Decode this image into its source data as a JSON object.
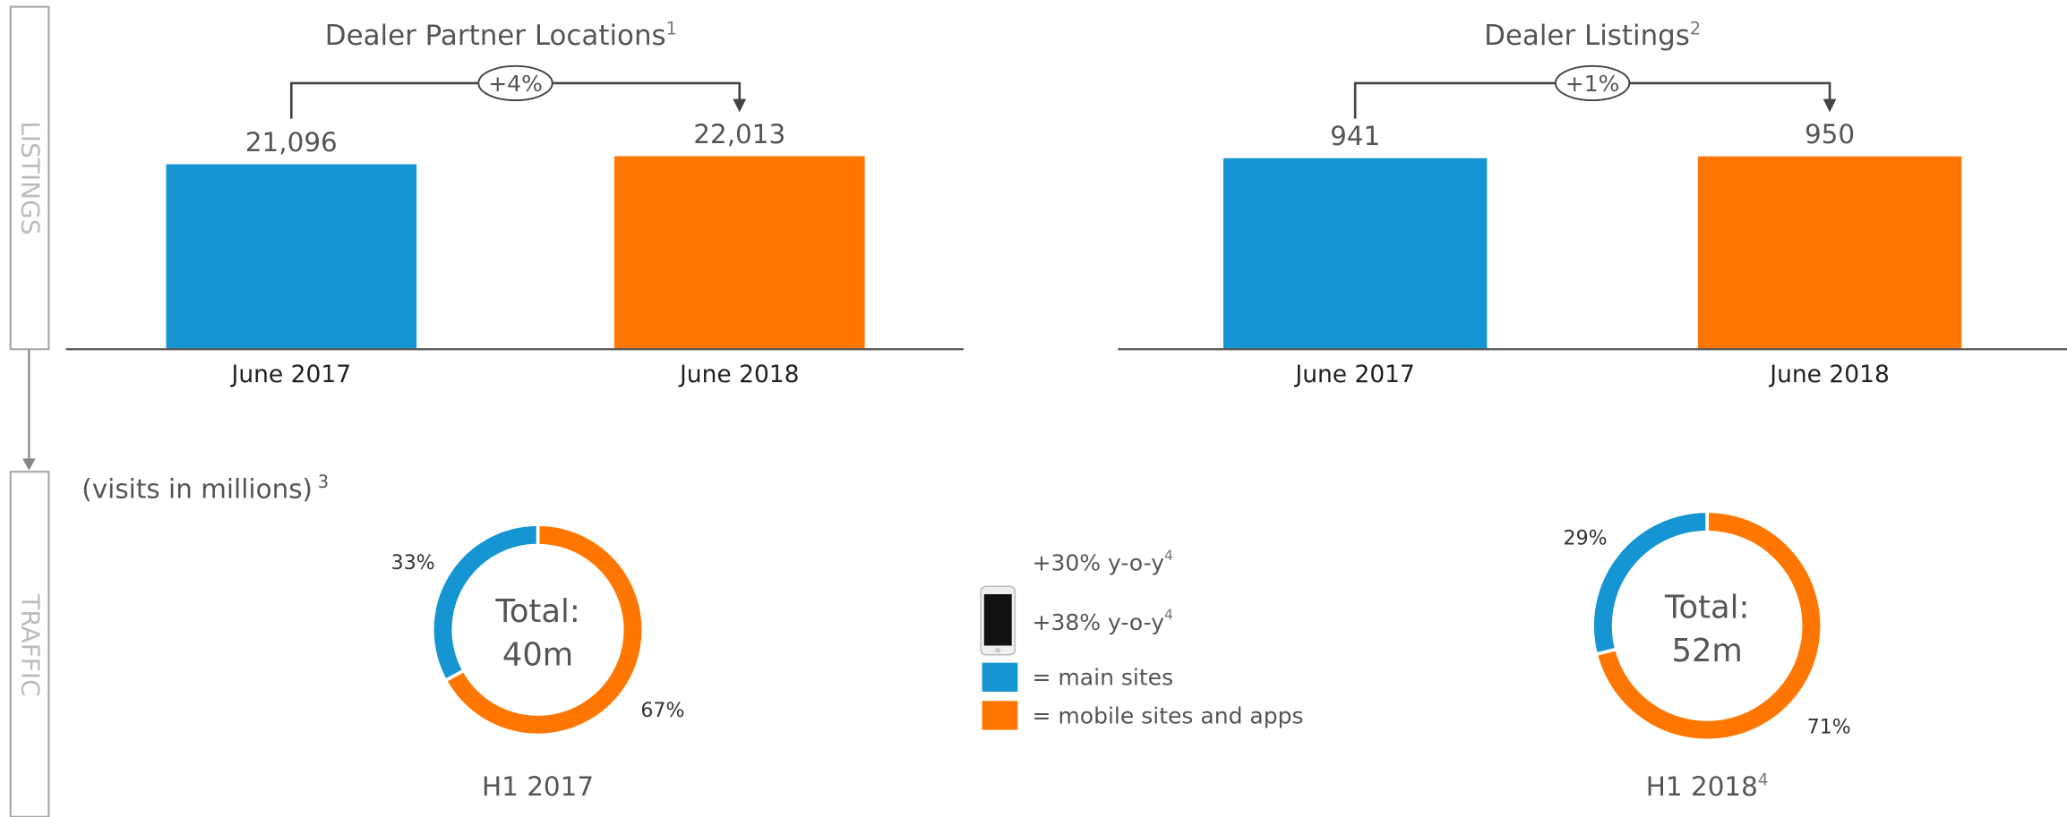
{
  "side_labels": [
    "LISTINGS",
    "TRAFFIC"
  ],
  "chart_data": [
    {
      "type": "bar",
      "title": "Dealer Partner Locations",
      "title_footnote": "1",
      "categories": [
        "June 2017",
        "June 2018"
      ],
      "values": [
        21096,
        22013
      ],
      "value_labels": [
        "21,096",
        "22,013"
      ],
      "colors": [
        "#1596d3",
        "#ff7700"
      ],
      "ylim": [
        0,
        33800
      ],
      "change_label": "+4%"
    },
    {
      "type": "bar",
      "title": "Dealer Listings",
      "title_footnote": "2",
      "categories": [
        "June 2017",
        "June 2018"
      ],
      "values": [
        941,
        950
      ],
      "value_labels": [
        "941",
        "950"
      ],
      "colors": [
        "#1596d3",
        "#ff7700"
      ],
      "ylim": [
        0,
        1460
      ],
      "change_label": "+1%"
    },
    {
      "type": "donut",
      "values": [
        67,
        33
      ],
      "value_labels": [
        "67%",
        "33%"
      ],
      "colors": [
        "#ff7700",
        "#1596d3"
      ],
      "center_label": "Total:",
      "center_value": "40m",
      "caption": "H1 2017"
    },
    {
      "type": "donut",
      "values": [
        71,
        29
      ],
      "value_labels": [
        "71%",
        "29%"
      ],
      "colors": [
        "#ff7700",
        "#1596d3"
      ],
      "center_label": "Total:",
      "center_value": "52m",
      "caption": "H1 2018",
      "caption_footnote": "4"
    }
  ],
  "traffic_note": {
    "text": "(visits in millions)",
    "footnote": "3"
  },
  "legend": [
    {
      "text": "+30% y-o-y",
      "footnote": "4"
    },
    {
      "text": "+38% y-o-y",
      "footnote": "4"
    },
    {
      "text": "= main sites",
      "color": "#1596d3"
    },
    {
      "text": "= mobile sites and apps",
      "color": "#ff7700"
    }
  ]
}
